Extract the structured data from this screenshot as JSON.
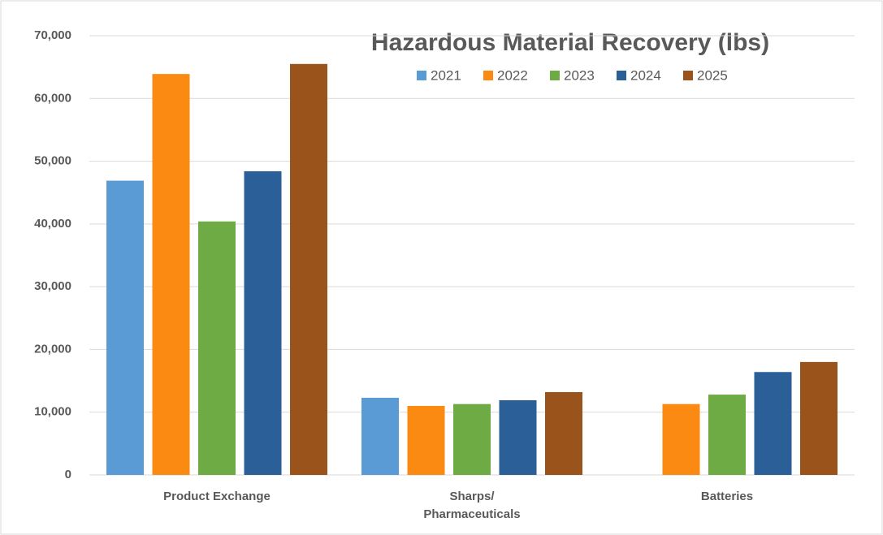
{
  "chart_data": {
    "type": "bar",
    "title": "Hazardous Material Recovery (lbs)",
    "categories": [
      "Product Exchange",
      "Sharps/ Pharmaceuticals",
      "Batteries"
    ],
    "series": [
      {
        "name": "2021",
        "color": "#5b9bd5",
        "values": [
          46900,
          12300,
          null
        ]
      },
      {
        "name": "2022",
        "color": "#fb8a12",
        "values": [
          63900,
          11000,
          11300
        ]
      },
      {
        "name": "2023",
        "color": "#6eab45",
        "values": [
          40400,
          11300,
          12800
        ]
      },
      {
        "name": "2024",
        "color": "#2a5f98",
        "values": [
          48400,
          11900,
          16400
        ]
      },
      {
        "name": "2025",
        "color": "#9a531a",
        "values": [
          65500,
          13200,
          18000
        ]
      }
    ],
    "ylim": [
      0,
      70000
    ],
    "yticks": [
      0,
      {
        "value": 10000,
        "label": "10,000"
      },
      {
        "value": 20000,
        "label": "20,000"
      },
      {
        "value": 30000,
        "label": "30,000"
      },
      {
        "value": 40000,
        "label": "40,000"
      },
      {
        "value": 50000,
        "label": "50,000"
      },
      {
        "value": 60000,
        "label": "60,000"
      },
      {
        "value": 70000,
        "label": "70,000"
      }
    ],
    "grid": true,
    "legend": "top"
  }
}
